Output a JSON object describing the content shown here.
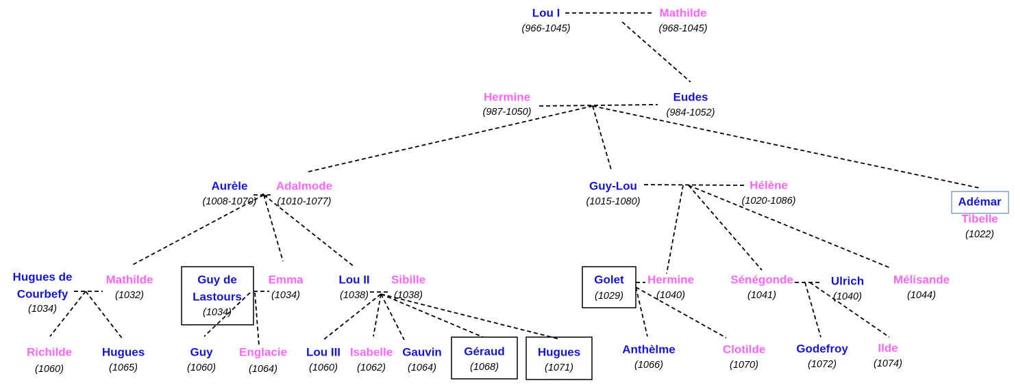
{
  "nodes": [
    {
      "name": "Lou I",
      "dates": "(966-1045)"
    },
    {
      "name": "Mathilde",
      "dates": "(968-1045)"
    },
    {
      "name": "Hermine",
      "dates": "(987-1050)"
    },
    {
      "name": "Eudes",
      "dates": "(984-1052)"
    },
    {
      "name": "Aurèle",
      "dates": "(1008-1070)"
    },
    {
      "name": "Adalmode",
      "dates": "(1010-1077)"
    },
    {
      "name": "Guy-Lou",
      "dates": "(1015-1080)"
    },
    {
      "name": "Hélène",
      "dates": "(1020-1086)"
    },
    {
      "name": "Adémar"
    },
    {
      "name": "Tibelle",
      "dates": "(1022)"
    },
    {
      "name": [
        "Hugues de",
        "Courbefy"
      ],
      "dates": "(1034)"
    },
    {
      "name": "Mathilde",
      "dates": "(1032)"
    },
    {
      "name": [
        "Guy de",
        "Lastours"
      ],
      "dates": "(1034)"
    },
    {
      "name": "Emma",
      "dates": "(1034)"
    },
    {
      "name": "Lou II",
      "dates": "(1038)"
    },
    {
      "name": "Sibille",
      "dates": "(1038)"
    },
    {
      "name": "Golet",
      "dates": "(1029)"
    },
    {
      "name": "Hermine",
      "dates": "(1040)"
    },
    {
      "name": "Sénégonde",
      "dates": "(1041)"
    },
    {
      "name": "Ulrich",
      "dates": "(1040)"
    },
    {
      "name": "Mélisande",
      "dates": "(1044)"
    },
    {
      "name": "Richilde",
      "dates": "(1060)"
    },
    {
      "name": "Hugues",
      "dates": "(1065)"
    },
    {
      "name": "Guy",
      "dates": "(1060)"
    },
    {
      "name": "Englacie",
      "dates": "(1064)"
    },
    {
      "name": "Lou III",
      "dates": "(1060)"
    },
    {
      "name": "Isabelle",
      "dates": "(1062)"
    },
    {
      "name": "Gauvin",
      "dates": "(1064)"
    },
    {
      "name": "Géraud",
      "dates": "(1068)"
    },
    {
      "name": "Hugues",
      "dates": "(1071)"
    },
    {
      "name": "Anthèlme",
      "dates": "(1066)"
    },
    {
      "name": "Clotilde",
      "dates": "(1070)"
    },
    {
      "name": "Godefroy",
      "dates": "(1072)"
    },
    {
      "name": "Ilde",
      "dates": "(1074)"
    }
  ]
}
